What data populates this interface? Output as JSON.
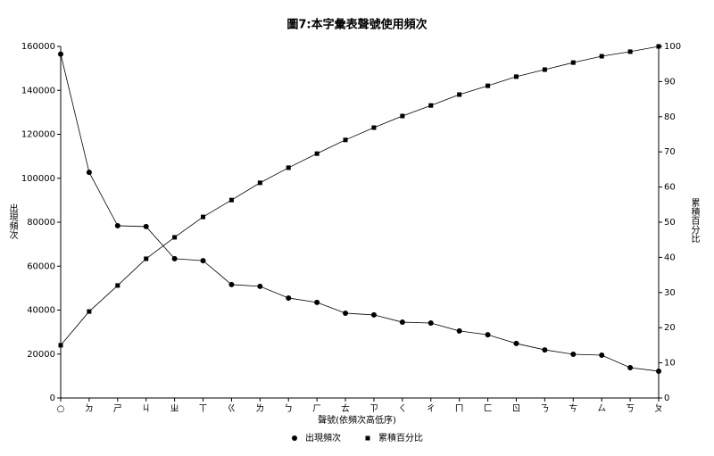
{
  "chart_data": {
    "type": "line",
    "title": "圖7:本字彙表聲號使用頻次",
    "x_label": "聲號(依頻次高低序)",
    "y_label": "出現頻次",
    "y2_label": "累積百分比",
    "categories": [
      "○",
      "ㄉ",
      "ㄕ",
      "ㄐ",
      "ㄓ",
      "ㄒ",
      "ㄍ",
      "ㄌ",
      "ㄅ",
      "ㄏ",
      "ㄊ",
      "ㄗ",
      "ㄑ",
      "ㄔ",
      "ㄇ",
      "ㄈ",
      "ㄖ",
      "ㄋ",
      "ㄘ",
      "ㄙ",
      "ㄎ",
      "ㄆ"
    ],
    "series": [
      {
        "name": "出現頻次",
        "color": "#000000",
        "marker": "circle",
        "axis": "y",
        "values": [
          156500,
          102700,
          78400,
          78000,
          63400,
          62500,
          51600,
          50800,
          45500,
          43500,
          38600,
          37800,
          34500,
          34100,
          30500,
          28800,
          24800,
          21900,
          19900,
          19500,
          13800,
          12200
        ]
      },
      {
        "name": "累積百分比",
        "color": "#000000",
        "marker": "square",
        "axis": "y2",
        "values": [
          15.0,
          24.6,
          32.0,
          39.6,
          45.7,
          51.5,
          56.3,
          61.2,
          65.5,
          69.5,
          73.4,
          76.9,
          80.2,
          83.2,
          86.3,
          88.8,
          91.4,
          93.4,
          95.4,
          97.2,
          98.5,
          100
        ]
      }
    ],
    "ylim": [
      0,
      160000
    ],
    "yticks": [
      0,
      20000,
      40000,
      60000,
      80000,
      100000,
      120000,
      140000,
      160000
    ],
    "y2lim": [
      0,
      100
    ],
    "y2ticks": [
      0,
      10,
      20,
      30,
      40,
      50,
      60,
      70,
      80,
      90,
      100
    ],
    "grid": false,
    "legend": "bottom"
  }
}
